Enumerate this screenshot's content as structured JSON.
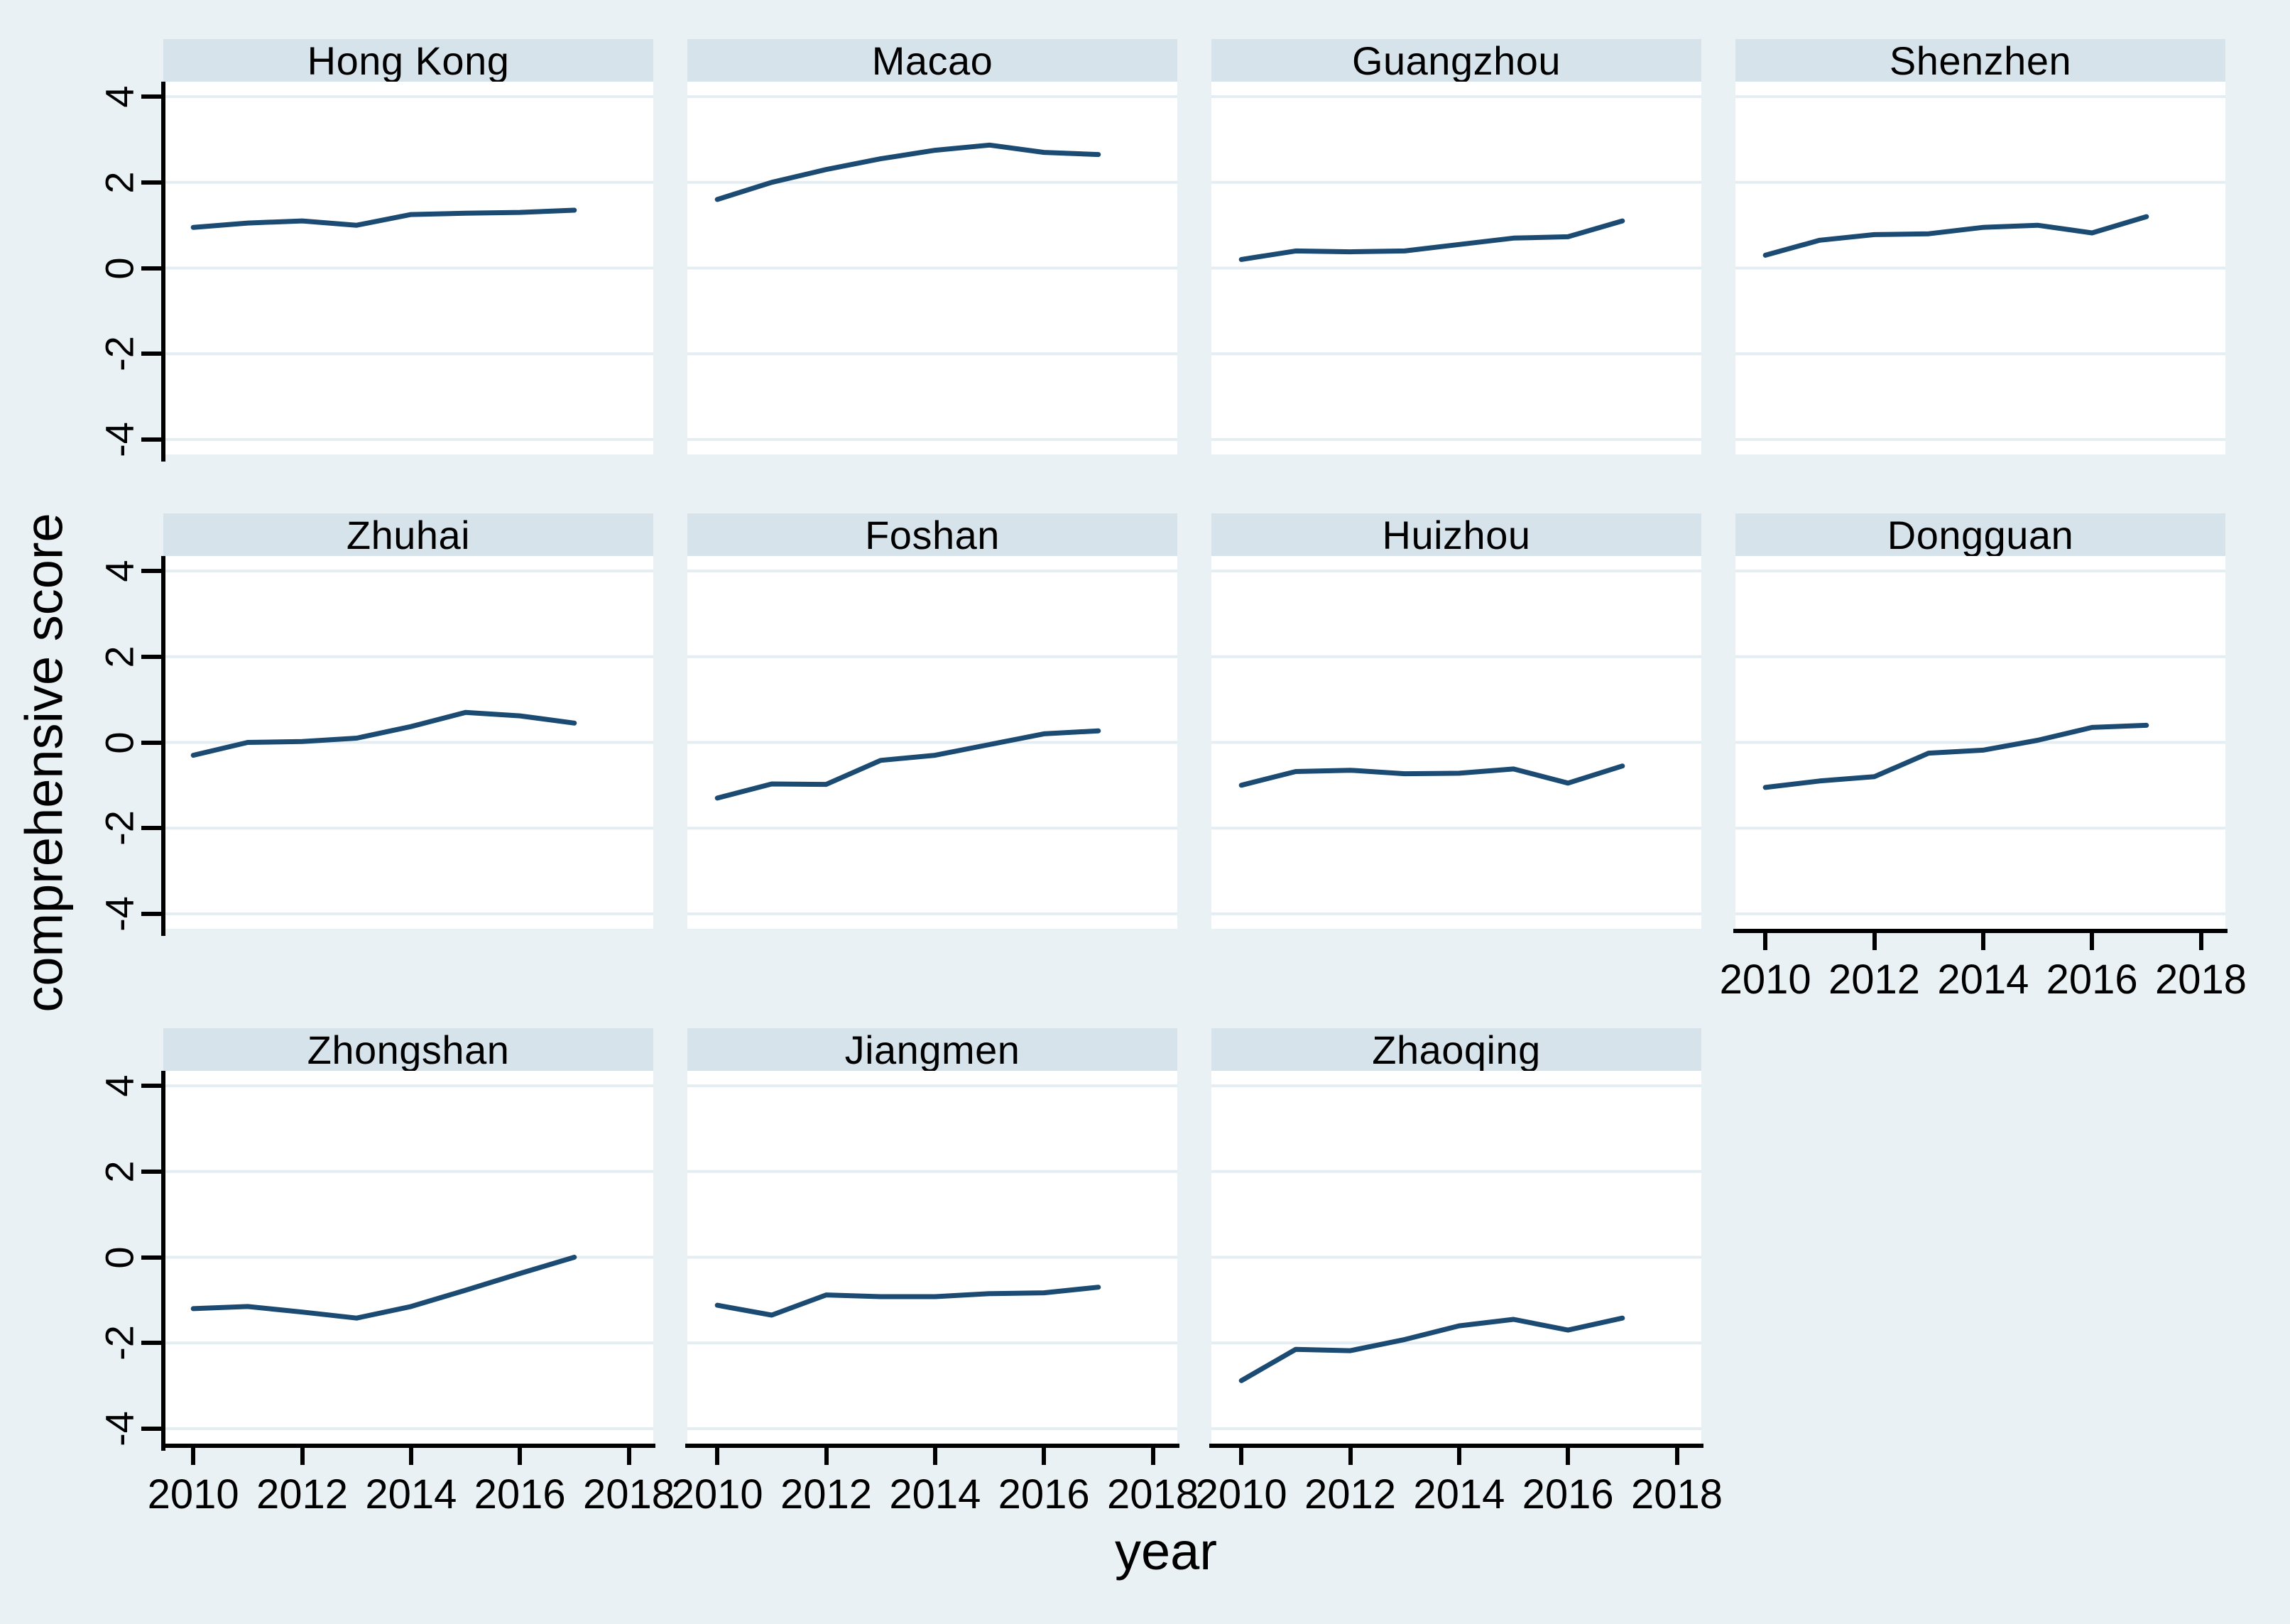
{
  "style": {
    "background": "#eaf1f4",
    "plot_background": "#ffffff",
    "header_fill": "#d7e3ea",
    "grid_color": "#e4edf2",
    "line_color": "#1b4b72",
    "axis_color": "#000000",
    "text_color": "#000000"
  },
  "chart_data": {
    "type": "line",
    "title": "",
    "xlabel": "year",
    "ylabel": "comprehensive score",
    "grid": true,
    "legend": "none",
    "facet_layout": {
      "rows": 3,
      "cols": 4
    },
    "x": [
      2010,
      2011,
      2012,
      2013,
      2014,
      2015,
      2016,
      2017
    ],
    "x_ticks": [
      2010,
      2012,
      2014,
      2016,
      2018
    ],
    "y_ticks": [
      4,
      2,
      0,
      -2,
      -4
    ],
    "xlim": [
      2009.45,
      2018.45
    ],
    "ylim": [
      -4.35,
      4.35
    ],
    "series": [
      {
        "name": "Hong Kong",
        "values": [
          0.95,
          1.05,
          1.1,
          1.0,
          1.25,
          1.28,
          1.3,
          1.35
        ]
      },
      {
        "name": "Macao",
        "values": [
          1.6,
          2.0,
          2.3,
          2.55,
          2.75,
          2.87,
          2.7,
          2.65
        ]
      },
      {
        "name": "Guangzhou",
        "values": [
          0.2,
          0.4,
          0.38,
          0.4,
          0.55,
          0.7,
          0.73,
          1.1
        ]
      },
      {
        "name": "Shenzhen",
        "values": [
          0.3,
          0.65,
          0.78,
          0.8,
          0.95,
          1.0,
          0.82,
          1.2
        ]
      },
      {
        "name": "Zhuhai",
        "values": [
          -0.3,
          0.0,
          0.02,
          0.1,
          0.37,
          0.7,
          0.62,
          0.45
        ]
      },
      {
        "name": "Foshan",
        "values": [
          -1.3,
          -0.97,
          -0.98,
          -0.42,
          -0.3,
          -0.05,
          0.2,
          0.27
        ]
      },
      {
        "name": "Huizhou",
        "values": [
          -1.0,
          -0.68,
          -0.65,
          -0.73,
          -0.72,
          -0.62,
          -0.95,
          -0.55
        ]
      },
      {
        "name": "Dongguan",
        "values": [
          -1.05,
          -0.9,
          -0.8,
          -0.25,
          -0.18,
          0.05,
          0.35,
          0.4
        ]
      },
      {
        "name": "Zhongshan",
        "values": [
          -1.2,
          -1.15,
          -1.28,
          -1.42,
          -1.15,
          -0.77,
          -0.38,
          0.0
        ]
      },
      {
        "name": "Jiangmen",
        "values": [
          -1.12,
          -1.35,
          -0.88,
          -0.92,
          -0.92,
          -0.85,
          -0.83,
          -0.7
        ]
      },
      {
        "name": "Zhaoqing",
        "values": [
          -2.88,
          -2.15,
          -2.18,
          -1.92,
          -1.6,
          -1.45,
          -1.7,
          -1.42
        ]
      }
    ]
  }
}
